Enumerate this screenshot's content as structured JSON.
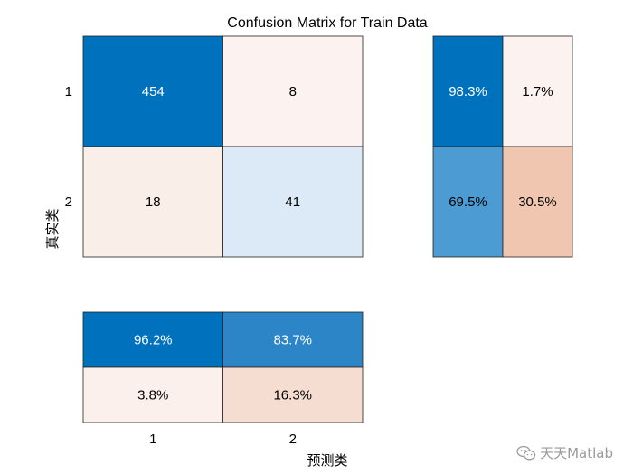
{
  "chart_data": {
    "type": "heatmap",
    "title": "Confusion Matrix for Train Data",
    "xlabel": "预测类",
    "ylabel": "真实类",
    "row_labels": [
      "1",
      "2"
    ],
    "col_labels": [
      "1",
      "2"
    ],
    "matrix": {
      "cells": [
        [
          {
            "text": "454",
            "value": 454,
            "fill": "#0072bd",
            "text_color": "#ffffff"
          },
          {
            "text": "8",
            "value": 8,
            "fill": "#fcf3f1",
            "text_color": "#000000"
          }
        ],
        [
          {
            "text": "18",
            "value": 18,
            "fill": "#faeee9",
            "text_color": "#000000"
          },
          {
            "text": "41",
            "value": 41,
            "fill": "#dbeaf6",
            "text_color": "#000000"
          }
        ]
      ]
    },
    "row_summary": {
      "cells": [
        [
          {
            "text": "98.3%",
            "value": 98.3,
            "fill": "#0072bd",
            "text_color": "#ffffff"
          },
          {
            "text": "1.7%",
            "value": 1.7,
            "fill": "#fcf3f1",
            "text_color": "#000000"
          }
        ],
        [
          {
            "text": "69.5%",
            "value": 69.5,
            "fill": "#4c9cd3",
            "text_color": "#000000"
          },
          {
            "text": "30.5%",
            "value": 30.5,
            "fill": "#f0c6b1",
            "text_color": "#000000"
          }
        ]
      ]
    },
    "column_summary": {
      "cells": [
        [
          {
            "text": "96.2%",
            "value": 96.2,
            "fill": "#0072bd",
            "text_color": "#ffffff"
          },
          {
            "text": "83.7%",
            "value": 83.7,
            "fill": "#2b85c6",
            "text_color": "#ffffff"
          }
        ],
        [
          {
            "text": "3.8%",
            "value": 3.8,
            "fill": "#fbf0ec",
            "text_color": "#000000"
          },
          {
            "text": "16.3%",
            "value": 16.3,
            "fill": "#f5ddd1",
            "text_color": "#000000"
          }
        ]
      ]
    }
  },
  "watermark": {
    "text": "天天Matlab",
    "color": "#9a9a9a"
  }
}
